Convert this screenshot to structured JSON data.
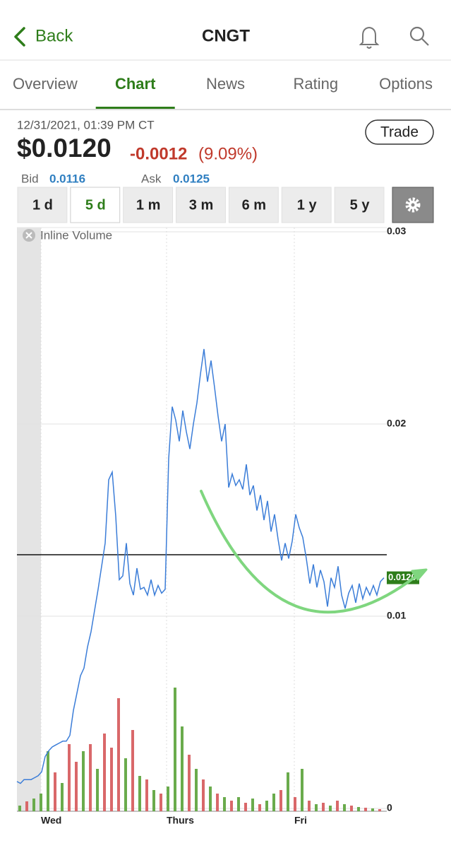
{
  "header": {
    "back": "Back",
    "symbol": "CNGT"
  },
  "tabs": {
    "items": [
      "Overview",
      "Chart",
      "News",
      "Rating",
      "Options"
    ],
    "selected": 1
  },
  "quote": {
    "timestamp": "12/31/2021, 01:39 PM CT",
    "trade": "Trade",
    "price": "$0.0120",
    "change": "-0.0012",
    "change_pct": "(9.09%)",
    "bid_label": "Bid",
    "bid": "0.0116",
    "ask_label": "Ask",
    "ask": "0.0125"
  },
  "ranges": {
    "items": [
      "1 d",
      "5 d",
      "1 m",
      "3 m",
      "6 m",
      "1 y",
      "5 y"
    ],
    "selected": 1
  },
  "chart_data": {
    "type": "line",
    "toggle_label": "Inline Volume",
    "color": "#3b7dd8",
    "values": [
      0.0014,
      0.0013,
      0.0015,
      0.0015,
      0.0015,
      0.0016,
      0.0017,
      0.0019,
      0.0027,
      0.003,
      0.0032,
      0.0033,
      0.0034,
      0.0035,
      0.0035,
      0.0038,
      0.0051,
      0.006,
      0.0069,
      0.0073,
      0.0084,
      0.0092,
      0.0103,
      0.0114,
      0.0126,
      0.0138,
      0.0171,
      0.0175,
      0.0152,
      0.0119,
      0.0121,
      0.0138,
      0.0117,
      0.0111,
      0.0125,
      0.0114,
      0.0115,
      0.0111,
      0.0119,
      0.0111,
      0.0116,
      0.0112,
      0.0114,
      0.0182,
      0.0209,
      0.0202,
      0.0191,
      0.0207,
      0.0196,
      0.0187,
      0.02,
      0.0211,
      0.0226,
      0.0239,
      0.0222,
      0.0233,
      0.0219,
      0.0204,
      0.0191,
      0.02,
      0.0167,
      0.0174,
      0.0168,
      0.0171,
      0.0166,
      0.0179,
      0.0163,
      0.0168,
      0.0155,
      0.0163,
      0.015,
      0.016,
      0.0144,
      0.0153,
      0.014,
      0.0129,
      0.0138,
      0.013,
      0.0139,
      0.0153,
      0.0146,
      0.0141,
      0.013,
      0.0117,
      0.0127,
      0.0115,
      0.0124,
      0.0118,
      0.0105,
      0.012,
      0.0115,
      0.0126,
      0.0111,
      0.0104,
      0.0112,
      0.0116,
      0.0107,
      0.0117,
      0.0109,
      0.0115,
      0.0111,
      0.0116,
      0.0111,
      0.0118,
      0.012
    ],
    "xlim": [
      0,
      104
    ],
    "xticks": [
      {
        "value": 6.8,
        "label": "Wed"
      },
      {
        "value": 42.4,
        "label": "Thurs"
      },
      {
        "value": 78.6,
        "label": "Fri"
      }
    ],
    "premarket_end": 6.8,
    "ylim": [
      0,
      0.03
    ],
    "yticks": [
      0,
      0.01,
      0.02,
      0.03
    ],
    "grid": true,
    "prev_close": 0.0132,
    "last_price": 0.012,
    "last_label": "0.0120",
    "last_color": "#2e7d1a",
    "volume": {
      "up_color": "#6aab4c",
      "down_color": "#d9686a",
      "values": [
        8,
        14,
        18,
        25,
        85,
        55,
        40,
        95,
        70,
        85,
        95,
        60,
        110,
        90,
        160,
        75,
        115,
        50,
        45,
        30,
        25,
        35,
        175,
        120,
        80,
        60,
        45,
        35,
        25,
        20,
        15,
        20,
        12,
        18,
        10,
        15,
        25,
        30,
        55,
        20,
        60,
        15,
        10,
        12,
        8,
        15,
        10,
        8,
        6,
        5,
        4,
        3
      ],
      "up": [
        1,
        0,
        1,
        1,
        1,
        0,
        1,
        0,
        0,
        1,
        0,
        1,
        0,
        0,
        0,
        1,
        0,
        1,
        0,
        1,
        0,
        1,
        1,
        1,
        0,
        1,
        0,
        1,
        0,
        1,
        0,
        1,
        0,
        1,
        0,
        1,
        1,
        0,
        1,
        0,
        1,
        0,
        1,
        0,
        1,
        0,
        1,
        0,
        1,
        0,
        1,
        0
      ]
    }
  }
}
